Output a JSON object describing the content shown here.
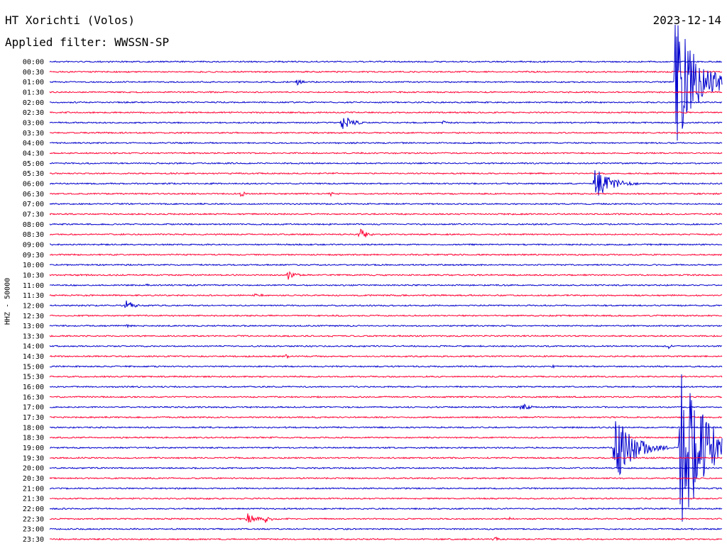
{
  "header": {
    "station": "HT Xorichti (Volos)",
    "filter": "Applied filter: WWSSN-SP",
    "date": "2023-12-14"
  },
  "chart_data": {
    "type": "line",
    "title": "HT Xorichti (Volos)",
    "subtitle": "Applied filter: WWSSN-SP",
    "ylabel": "HHZ - 50000",
    "xlabel": "",
    "rows": [
      "00:00",
      "00:30",
      "01:00",
      "01:30",
      "02:00",
      "02:30",
      "03:00",
      "03:30",
      "04:00",
      "04:30",
      "05:00",
      "05:30",
      "06:00",
      "06:30",
      "07:00",
      "07:30",
      "08:00",
      "08:30",
      "09:00",
      "09:30",
      "10:00",
      "10:30",
      "11:00",
      "11:30",
      "12:00",
      "12:30",
      "13:00",
      "13:30",
      "14:00",
      "14:30",
      "15:00",
      "15:30",
      "16:00",
      "16:30",
      "17:00",
      "17:30",
      "18:00",
      "18:30",
      "19:00",
      "19:30",
      "20:00",
      "20:30",
      "21:00",
      "21:30",
      "22:00",
      "22:30",
      "23:00",
      "23:30"
    ],
    "colors": {
      "even_rows": "#0000cc",
      "odd_rows": "#ff0033"
    },
    "events": [
      {
        "row": 2,
        "minute": 29.0,
        "amp": 12,
        "dur": 2.0
      },
      {
        "row": 2,
        "minute": 11.0,
        "amp": 5,
        "dur": 1.0
      },
      {
        "row": 6,
        "minute": 13.0,
        "amp": 14,
        "dur": 1.4
      },
      {
        "row": 6,
        "minute": 17.5,
        "amp": 4,
        "dur": 0.6
      },
      {
        "row": 2,
        "minute": 27.9,
        "amp": 100,
        "dur": 3.0
      },
      {
        "row": 12,
        "minute": 24.3,
        "amp": 24,
        "dur": 2.2
      },
      {
        "row": 13,
        "minute": 8.5,
        "amp": 5,
        "dur": 0.8
      },
      {
        "row": 13,
        "minute": 12.5,
        "amp": 4,
        "dur": 0.5
      },
      {
        "row": 17,
        "minute": 13.8,
        "amp": 9,
        "dur": 1.2
      },
      {
        "row": 21,
        "minute": 10.6,
        "amp": 10,
        "dur": 1.0
      },
      {
        "row": 22,
        "minute": 4.3,
        "amp": 3,
        "dur": 0.6
      },
      {
        "row": 23,
        "minute": 9.1,
        "amp": 3,
        "dur": 2.0
      },
      {
        "row": 24,
        "minute": 3.4,
        "amp": 9,
        "dur": 1.0
      },
      {
        "row": 26,
        "minute": 3.4,
        "amp": 3,
        "dur": 0.6
      },
      {
        "row": 28,
        "minute": 27.6,
        "amp": 5,
        "dur": 0.4
      },
      {
        "row": 29,
        "minute": 10.5,
        "amp": 4,
        "dur": 0.8
      },
      {
        "row": 30,
        "minute": 22.4,
        "amp": 3,
        "dur": 0.8
      },
      {
        "row": 32,
        "minute": 18.2,
        "amp": 3,
        "dur": 0.4
      },
      {
        "row": 34,
        "minute": 21.0,
        "amp": 6,
        "dur": 1.4
      },
      {
        "row": 38,
        "minute": 25.2,
        "amp": 56,
        "dur": 2.4
      },
      {
        "row": 38,
        "minute": 28.1,
        "amp": 120,
        "dur": 4.0
      },
      {
        "row": 45,
        "minute": 8.8,
        "amp": 9,
        "dur": 1.2
      },
      {
        "row": 45,
        "minute": 9.6,
        "amp": 7,
        "dur": 1.0
      },
      {
        "row": 45,
        "minute": 20.5,
        "amp": 3,
        "dur": 0.8
      },
      {
        "row": 47,
        "minute": 19.8,
        "amp": 6,
        "dur": 0.6
      }
    ]
  }
}
